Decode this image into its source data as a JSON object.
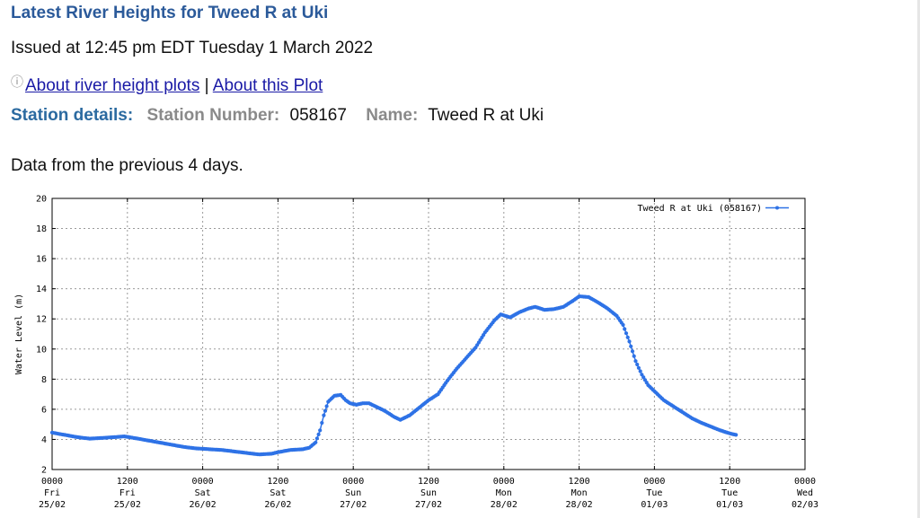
{
  "page": {
    "heading": "Latest River Heights for Tweed R at Uki",
    "issued": "Issued at 12:45 pm EDT Tuesday 1 March 2022",
    "link_river_plots": "About river height plots",
    "link_separator": "|",
    "link_this_plot": "About this Plot",
    "station_details_label": "Station details:",
    "station_number_label": "Station Number:",
    "station_number": "058167",
    "name_label": "Name:",
    "name": "Tweed R at Uki",
    "data_info": "Data from the previous 4 days."
  },
  "chart_data": {
    "type": "line",
    "title": "",
    "xlabel": "",
    "ylabel": "Water Level (m)",
    "ylim": [
      0,
      20
    ],
    "xlim": [
      0,
      120
    ],
    "yticks": [
      2,
      4,
      6,
      8,
      10,
      12,
      14,
      16,
      18,
      20
    ],
    "xticks": [
      {
        "x": 0,
        "time": "0000",
        "day": "Fri",
        "date": "25/02"
      },
      {
        "x": 12,
        "time": "1200",
        "day": "Fri",
        "date": "25/02"
      },
      {
        "x": 24,
        "time": "0000",
        "day": "Sat",
        "date": "26/02"
      },
      {
        "x": 36,
        "time": "1200",
        "day": "Sat",
        "date": "26/02"
      },
      {
        "x": 48,
        "time": "0000",
        "day": "Sun",
        "date": "27/02"
      },
      {
        "x": 60,
        "time": "1200",
        "day": "Sun",
        "date": "27/02"
      },
      {
        "x": 72,
        "time": "0000",
        "day": "Mon",
        "date": "28/02"
      },
      {
        "x": 84,
        "time": "1200",
        "day": "Mon",
        "date": "28/02"
      },
      {
        "x": 96,
        "time": "0000",
        "day": "Tue",
        "date": "01/03"
      },
      {
        "x": 108,
        "time": "1200",
        "day": "Tue",
        "date": "01/03"
      },
      {
        "x": 120,
        "time": "0000",
        "day": "Wed",
        "date": "02/03"
      }
    ],
    "grid": true,
    "legend": "top-right",
    "color": "#2e72e6",
    "series": [
      {
        "name": "Tweed R at Uki (058167)",
        "points": [
          [
            0,
            4.45
          ],
          [
            2,
            4.3
          ],
          [
            4,
            4.15
          ],
          [
            6,
            4.05
          ],
          [
            8,
            4.1
          ],
          [
            10,
            4.15
          ],
          [
            11.5,
            4.2
          ],
          [
            13,
            4.1
          ],
          [
            15,
            3.95
          ],
          [
            17,
            3.8
          ],
          [
            19,
            3.65
          ],
          [
            21,
            3.5
          ],
          [
            23,
            3.4
          ],
          [
            25,
            3.35
          ],
          [
            27,
            3.3
          ],
          [
            29,
            3.2
          ],
          [
            31,
            3.1
          ],
          [
            33,
            3.0
          ],
          [
            35,
            3.05
          ],
          [
            36,
            3.15
          ],
          [
            38,
            3.3
          ],
          [
            40,
            3.35
          ],
          [
            41,
            3.45
          ],
          [
            42,
            3.8
          ],
          [
            42.7,
            4.6
          ],
          [
            43.3,
            5.6
          ],
          [
            44,
            6.5
          ],
          [
            45,
            6.9
          ],
          [
            46,
            6.95
          ],
          [
            46.8,
            6.6
          ],
          [
            47.5,
            6.4
          ],
          [
            48.5,
            6.3
          ],
          [
            49.5,
            6.4
          ],
          [
            50.5,
            6.4
          ],
          [
            51.5,
            6.2
          ],
          [
            53,
            5.9
          ],
          [
            54.5,
            5.5
          ],
          [
            55.5,
            5.3
          ],
          [
            57,
            5.6
          ],
          [
            58.5,
            6.1
          ],
          [
            60,
            6.6
          ],
          [
            61.5,
            7.0
          ],
          [
            63,
            7.9
          ],
          [
            64.5,
            8.7
          ],
          [
            66,
            9.4
          ],
          [
            67.5,
            10.1
          ],
          [
            69,
            11.1
          ],
          [
            70.5,
            11.9
          ],
          [
            71.5,
            12.3
          ],
          [
            73,
            12.1
          ],
          [
            74.5,
            12.45
          ],
          [
            76,
            12.7
          ],
          [
            77,
            12.8
          ],
          [
            78.5,
            12.6
          ],
          [
            80,
            12.65
          ],
          [
            81.5,
            12.8
          ],
          [
            83,
            13.2
          ],
          [
            84,
            13.5
          ],
          [
            85.5,
            13.45
          ],
          [
            87,
            13.1
          ],
          [
            88.5,
            12.7
          ],
          [
            90,
            12.2
          ],
          [
            91,
            11.6
          ],
          [
            92,
            10.5
          ],
          [
            93,
            9.2
          ],
          [
            94,
            8.3
          ],
          [
            95,
            7.6
          ],
          [
            96,
            7.2
          ],
          [
            97.5,
            6.6
          ],
          [
            99,
            6.2
          ],
          [
            100.5,
            5.8
          ],
          [
            102,
            5.4
          ],
          [
            103.5,
            5.1
          ],
          [
            105,
            4.85
          ],
          [
            106.5,
            4.6
          ],
          [
            108,
            4.4
          ],
          [
            109,
            4.3
          ]
        ]
      }
    ]
  }
}
